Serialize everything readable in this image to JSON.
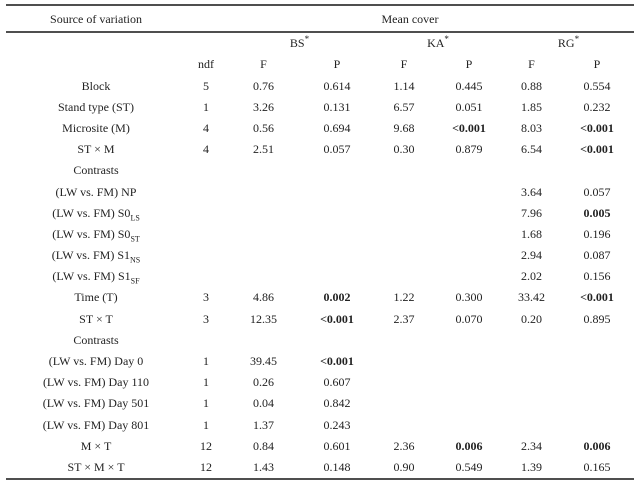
{
  "table": {
    "header": {
      "source_of_variation": "Source of variation",
      "mean_cover": "Mean cover",
      "groups": [
        {
          "label": "BS",
          "sup": "*"
        },
        {
          "label": "KA",
          "sup": "*"
        },
        {
          "label": "RG",
          "sup": "*"
        }
      ],
      "ndf_label": "ndf",
      "f_label": "F",
      "p_label": "P"
    },
    "rows": [
      {
        "label": "Block",
        "ndf": "5",
        "bs_f": "0.76",
        "bs_p": "0.614",
        "ka_f": "1.14",
        "ka_p": "0.445",
        "rg_f": "0.88",
        "rg_p": "0.554"
      },
      {
        "label": "Stand type (ST)",
        "ndf": "1",
        "bs_f": "3.26",
        "bs_p": "0.131",
        "ka_f": "6.57",
        "ka_p": "0.051",
        "rg_f": "1.85",
        "rg_p": "0.232"
      },
      {
        "label": "Microsite (M)",
        "ndf": "4",
        "bs_f": "0.56",
        "bs_p": "0.694",
        "ka_f": "9.68",
        "ka_p": "<0.001",
        "rg_f": "8.03",
        "rg_p": "<0.001"
      },
      {
        "label": "ST × M",
        "ndf": "4",
        "bs_f": "2.51",
        "bs_p": "0.057",
        "ka_f": "0.30",
        "ka_p": "0.879",
        "rg_f": "6.54",
        "rg_p": "<0.001"
      },
      {
        "label": "Contrasts"
      },
      {
        "label": "(LW vs. FM) NP",
        "rg_f": "3.64",
        "rg_p": "0.057"
      },
      {
        "label": "(LW vs. FM) S0",
        "label_sub": "LS",
        "rg_f": "7.96",
        "rg_p": "0.005"
      },
      {
        "label": "(LW vs. FM) S0",
        "label_sub": "ST",
        "rg_f": "1.68",
        "rg_p": "0.196"
      },
      {
        "label": "(LW vs. FM) S1",
        "label_sub": "NS",
        "rg_f": "2.94",
        "rg_p": "0.087"
      },
      {
        "label": "(LW vs. FM) S1",
        "label_sub": "SF",
        "rg_f": "2.02",
        "rg_p": "0.156"
      },
      {
        "label": "Time (T)",
        "ndf": "3",
        "bs_f": "4.86",
        "bs_p": "0.002",
        "ka_f": "1.22",
        "ka_p": "0.300",
        "rg_f": "33.42",
        "rg_p": "<0.001"
      },
      {
        "label": "ST × T",
        "ndf": "3",
        "bs_f": "12.35",
        "bs_p": "<0.001",
        "ka_f": "2.37",
        "ka_p": "0.070",
        "rg_f": "0.20",
        "rg_p": "0.895"
      },
      {
        "label": "Contrasts"
      },
      {
        "label": "(LW vs. FM) Day 0",
        "ndf": "1",
        "bs_f": "39.45",
        "bs_p": "<0.001"
      },
      {
        "label": "(LW vs. FM) Day 110",
        "ndf": "1",
        "bs_f": "0.26",
        "bs_p": "0.607"
      },
      {
        "label": "(LW vs. FM) Day 501",
        "ndf": "1",
        "bs_f": "0.04",
        "bs_p": "0.842"
      },
      {
        "label": "(LW vs. FM) Day 801",
        "ndf": "1",
        "bs_f": "1.37",
        "bs_p": "0.243"
      },
      {
        "label": "M × T",
        "ndf": "12",
        "bs_f": "0.84",
        "bs_p": "0.601",
        "ka_f": "2.36",
        "ka_p": "0.006",
        "rg_f": "2.34",
        "rg_p": "0.006"
      },
      {
        "label": "ST × M × T",
        "ndf": "12",
        "bs_f": "1.43",
        "bs_p": "0.148",
        "ka_f": "0.90",
        "ka_p": "0.549",
        "rg_f": "1.39",
        "rg_p": "0.165"
      }
    ]
  }
}
